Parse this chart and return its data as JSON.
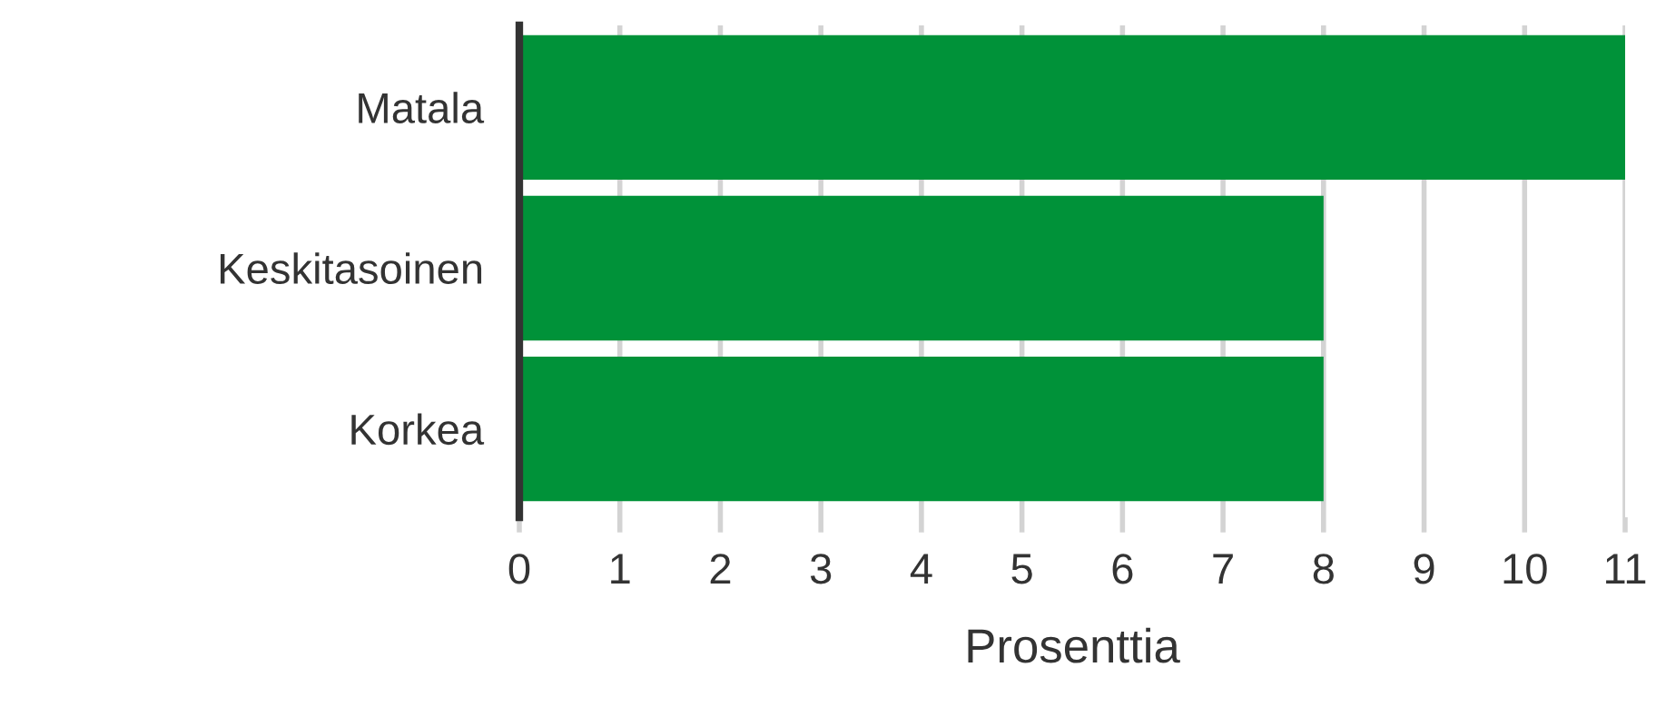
{
  "chart_data": {
    "type": "bar",
    "orientation": "horizontal",
    "categories": [
      "Matala",
      "Keskitasoinen",
      "Korkea"
    ],
    "values": [
      11,
      8,
      8
    ],
    "color": "#009239",
    "xlabel": "Prosenttia",
    "xlim": [
      0,
      11
    ],
    "xticks": [
      0,
      1,
      2,
      3,
      4,
      5,
      6,
      7,
      8,
      9,
      10,
      11
    ],
    "grid": "x"
  }
}
